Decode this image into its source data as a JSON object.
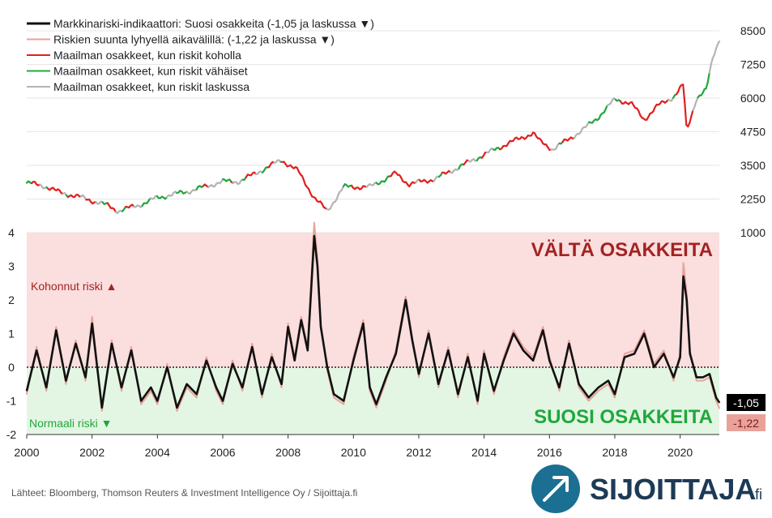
{
  "chart_data": {
    "type": "line",
    "legend": [
      {
        "label": "Markkinariski-indikaattori: Suosi osakkeita (-1,05 ja laskussa ▼)",
        "color": "#111111"
      },
      {
        "label": "Riskien suunta lyhyellä aikavälillä: (-1,22 ja laskussa ▼)",
        "color": "#e8a29a"
      },
      {
        "label": "Maailman osakkeet, kun riskit koholla",
        "color": "#e02020"
      },
      {
        "label": "Maailman osakkeet, kun riskit vähäiset",
        "color": "#1fa83c"
      },
      {
        "label": "Maailman osakkeet, kun riskit laskussa",
        "color": "#b4b4b4"
      }
    ],
    "x_ticks": [
      "2000",
      "2002",
      "2004",
      "2006",
      "2008",
      "2010",
      "2012",
      "2014",
      "2016",
      "2018",
      "2020"
    ],
    "xlim": [
      2000,
      2021.2
    ],
    "left_axis": {
      "ticks": [
        "4",
        "3",
        "2",
        "1",
        "0",
        "-1",
        "-2"
      ],
      "range": [
        -2,
        4
      ]
    },
    "right_axis": {
      "ticks": [
        "8500",
        "7250",
        "6000",
        "4750",
        "3500",
        "2250",
        "1000"
      ],
      "range": [
        1000,
        8500
      ]
    },
    "zones": [
      {
        "label": "VÄLTÄ OSAKKEITA",
        "range": [
          0,
          4
        ],
        "color": "#fbdede"
      },
      {
        "label": "SUOSI OSAKKEITA",
        "range": [
          -2,
          0
        ],
        "color": "#e3f6e3"
      }
    ],
    "zone_notes": {
      "upper": "Kohonnut riski ▲",
      "lower": "Normaali riski ▼"
    },
    "end_labels": {
      "indicator": "-1,05",
      "short_term": "-1,22"
    },
    "index_series": {
      "x": [
        2000.0,
        2000.5,
        2001.0,
        2001.7,
        2002.5,
        2002.8,
        2003.5,
        2004.0,
        2005.0,
        2006.0,
        2006.5,
        2007.0,
        2007.8,
        2008.3,
        2008.8,
        2009.2,
        2009.7,
        2010.5,
        2011.3,
        2011.7,
        2012.5,
        2013.0,
        2014.0,
        2014.7,
        2015.5,
        2015.7,
        2016.1,
        2016.5,
        2017.0,
        2017.5,
        2018.0,
        2018.2,
        2018.5,
        2018.9,
        2019.3,
        2019.8,
        2020.1,
        2020.2,
        2020.5,
        2020.8,
        2021.0,
        2021.2
      ],
      "y": [
        2850,
        2750,
        2500,
        2300,
        2000,
        1800,
        2050,
        2300,
        2550,
        2900,
        2900,
        3200,
        3700,
        3300,
        2300,
        1800,
        2700,
        2700,
        3200,
        2800,
        3000,
        3300,
        3900,
        4300,
        4700,
        4400,
        4100,
        4400,
        4800,
        5300,
        5950,
        5900,
        5800,
        5200,
        5700,
        6050,
        6500,
        4750,
        6000,
        6300,
        7500,
        8200
      ]
    },
    "indicator_series": {
      "x": [
        2000.0,
        2000.3,
        2000.6,
        2000.9,
        2001.2,
        2001.5,
        2001.8,
        2002.0,
        2002.3,
        2002.6,
        2002.9,
        2003.2,
        2003.5,
        2003.8,
        2004.0,
        2004.3,
        2004.6,
        2004.9,
        2005.2,
        2005.5,
        2005.8,
        2006.0,
        2006.3,
        2006.6,
        2006.9,
        2007.2,
        2007.5,
        2007.8,
        2008.0,
        2008.2,
        2008.4,
        2008.6,
        2008.8,
        2008.9,
        2009.0,
        2009.2,
        2009.4,
        2009.7,
        2010.0,
        2010.3,
        2010.5,
        2010.7,
        2011.0,
        2011.3,
        2011.6,
        2011.8,
        2012.0,
        2012.3,
        2012.6,
        2012.9,
        2013.2,
        2013.5,
        2013.8,
        2014.0,
        2014.3,
        2014.6,
        2014.9,
        2015.2,
        2015.5,
        2015.8,
        2016.0,
        2016.3,
        2016.6,
        2016.9,
        2017.2,
        2017.5,
        2017.8,
        2018.0,
        2018.3,
        2018.6,
        2018.9,
        2019.2,
        2019.5,
        2019.8,
        2020.0,
        2020.1,
        2020.2,
        2020.3,
        2020.5,
        2020.7,
        2020.9,
        2021.1,
        2021.2
      ],
      "y": [
        -0.7,
        0.5,
        -0.6,
        1.1,
        -0.4,
        0.7,
        -0.3,
        1.3,
        -1.2,
        0.7,
        -0.6,
        0.5,
        -1.0,
        -0.6,
        -1.0,
        0.0,
        -1.2,
        -0.5,
        -0.8,
        0.2,
        -0.6,
        -1.0,
        0.1,
        -0.6,
        0.6,
        -0.8,
        0.3,
        -0.5,
        1.2,
        0.2,
        1.4,
        0.5,
        3.9,
        3.0,
        1.2,
        0.0,
        -0.8,
        -1.0,
        0.2,
        1.3,
        -0.6,
        -1.1,
        -0.3,
        0.4,
        2.0,
        0.8,
        -0.2,
        1.0,
        -0.5,
        0.5,
        -0.8,
        0.3,
        -1.0,
        0.4,
        -0.7,
        0.2,
        1.0,
        0.5,
        0.2,
        1.1,
        0.2,
        -0.6,
        0.7,
        -0.5,
        -0.9,
        -0.6,
        -0.4,
        -0.8,
        0.3,
        0.4,
        1.0,
        0.0,
        0.4,
        -0.3,
        0.3,
        2.7,
        2.0,
        0.4,
        -0.3,
        -0.3,
        -0.2,
        -0.9,
        -1.05
      ]
    },
    "short_term_series": {
      "x": [
        2000.0,
        2000.3,
        2000.6,
        2000.9,
        2001.2,
        2001.5,
        2001.8,
        2002.0,
        2002.3,
        2002.6,
        2002.9,
        2003.2,
        2003.5,
        2003.8,
        2004.0,
        2004.3,
        2004.6,
        2004.9,
        2005.2,
        2005.5,
        2005.8,
        2006.0,
        2006.3,
        2006.6,
        2006.9,
        2007.2,
        2007.5,
        2007.8,
        2008.0,
        2008.2,
        2008.4,
        2008.6,
        2008.8,
        2008.9,
        2009.0,
        2009.2,
        2009.4,
        2009.7,
        2010.0,
        2010.3,
        2010.5,
        2010.7,
        2011.0,
        2011.3,
        2011.6,
        2011.8,
        2012.0,
        2012.3,
        2012.6,
        2012.9,
        2013.2,
        2013.5,
        2013.8,
        2014.0,
        2014.3,
        2014.6,
        2014.9,
        2015.2,
        2015.5,
        2015.8,
        2016.0,
        2016.3,
        2016.6,
        2016.9,
        2017.2,
        2017.5,
        2017.8,
        2018.0,
        2018.3,
        2018.6,
        2018.9,
        2019.2,
        2019.5,
        2019.8,
        2020.0,
        2020.1,
        2020.2,
        2020.3,
        2020.5,
        2020.7,
        2020.9,
        2021.1,
        2021.2
      ],
      "y": [
        -0.8,
        0.6,
        -0.7,
        1.2,
        -0.5,
        0.8,
        -0.4,
        1.5,
        -1.3,
        0.8,
        -0.7,
        0.6,
        -1.1,
        -0.7,
        -1.1,
        0.1,
        -1.3,
        -0.6,
        -0.9,
        0.3,
        -0.7,
        -1.1,
        0.2,
        -0.7,
        0.7,
        -0.9,
        0.4,
        -0.6,
        1.3,
        0.3,
        1.5,
        0.6,
        4.3,
        3.2,
        1.3,
        -0.1,
        -0.9,
        -1.1,
        0.3,
        1.4,
        -0.7,
        -1.2,
        -0.4,
        0.5,
        2.1,
        0.9,
        -0.3,
        1.1,
        -0.6,
        0.6,
        -0.9,
        0.4,
        -1.1,
        0.5,
        -0.8,
        0.3,
        1.1,
        0.6,
        0.3,
        1.2,
        0.3,
        -0.7,
        0.8,
        -0.6,
        -1.0,
        -0.7,
        -0.5,
        -0.9,
        0.4,
        0.5,
        1.1,
        0.1,
        0.5,
        -0.4,
        0.4,
        3.1,
        2.2,
        0.5,
        -0.4,
        -0.4,
        -0.3,
        -1.0,
        -1.22
      ]
    }
  },
  "footer": {
    "source": "Lähteet: Bloomberg, Thomson Reuters & Investment Intelligence Oy / Sijoittaja.fi",
    "brand": "SIJOITTAJA",
    "brand_suffix": ".fi"
  }
}
